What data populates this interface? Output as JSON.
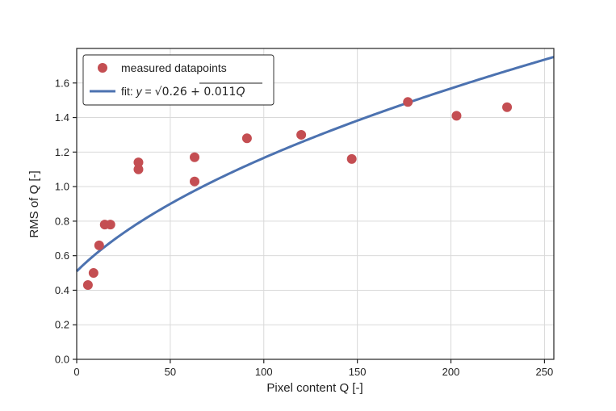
{
  "chart_data": {
    "type": "scatter",
    "xlabel": "Pixel content Q [-]",
    "ylabel": "RMS of Q [-]",
    "xlim": [
      0,
      255
    ],
    "ylim": [
      0,
      1.8
    ],
    "xticks": [
      0,
      50,
      100,
      150,
      200,
      250
    ],
    "yticks": [
      0.0,
      0.2,
      0.4,
      0.6,
      0.8,
      1.0,
      1.2,
      1.4,
      1.6
    ],
    "xtick_labels": [
      "0",
      "50",
      "100",
      "150",
      "200",
      "250"
    ],
    "ytick_labels": [
      "0.0",
      "0.2",
      "0.4",
      "0.6",
      "0.8",
      "1.0",
      "1.2",
      "1.4",
      "1.6"
    ],
    "grid": true,
    "legend_position": "top-left",
    "series": [
      {
        "name": "measured datapoints",
        "kind": "scatter",
        "color": "#c44e52",
        "x": [
          6,
          9,
          12,
          15,
          18,
          33,
          33,
          63,
          63,
          91,
          120,
          147,
          177,
          203,
          230
        ],
        "y": [
          0.43,
          0.5,
          0.66,
          0.78,
          0.78,
          1.1,
          1.14,
          1.03,
          1.17,
          1.28,
          1.3,
          1.16,
          1.49,
          1.41,
          1.46
        ]
      },
      {
        "name": "fit: y = √0.26 + 0.011Q",
        "kind": "line",
        "color": "#4c72b0",
        "formula": {
          "a": 0.26,
          "b": 0.011
        }
      }
    ]
  },
  "legend": {
    "points_label": "measured datapoints",
    "fit_prefix": "fit: ",
    "fit_var": "y",
    "fit_eq": " = ",
    "fit_sqrt": "√",
    "fit_expr": "0.26 + 0.011",
    "fit_q": "Q"
  }
}
